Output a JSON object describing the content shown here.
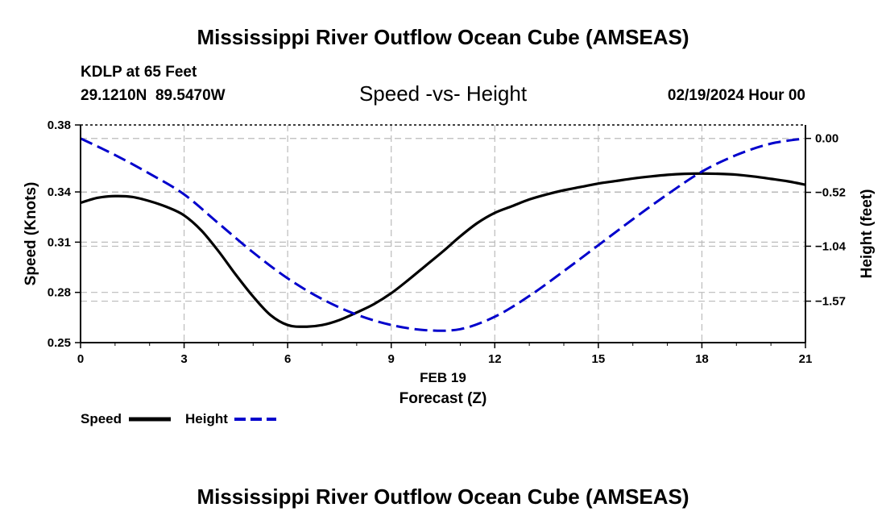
{
  "page": {
    "title": "Mississippi River Outflow Ocean Cube (AMSEAS)",
    "footer_title": "Mississippi River Outflow Ocean Cube (AMSEAS)"
  },
  "header": {
    "station": "KDLP at 65 Feet",
    "coords": "29.1210N  89.5470W",
    "date": "02/19/2024 Hour 00"
  },
  "chart_data": {
    "type": "line",
    "title": "Speed -vs- Height",
    "xlabel": "Forecast (Z)",
    "date_label": "FEB 19",
    "ylabel": "Speed (Knots)",
    "y2label": "Height (feet)",
    "xlim": [
      0,
      21
    ],
    "ylim": [
      0.25,
      0.38
    ],
    "y2lim": [
      -1.97,
      0.13
    ],
    "x_ticks": [
      0,
      3,
      6,
      9,
      12,
      15,
      18,
      21
    ],
    "x_tick_labels": [
      "0",
      "3",
      "6",
      "9",
      "12",
      "15",
      "18",
      "21"
    ],
    "y_ticks": [
      0.25,
      0.28,
      0.31,
      0.34,
      0.38
    ],
    "y_tick_labels": [
      "0.25",
      "0.28",
      "0.31",
      "0.34",
      "0.38"
    ],
    "y2_ticks": [
      0.0,
      -0.52,
      -1.04,
      -1.57
    ],
    "y2_tick_labels": [
      "0.00",
      "−0.52",
      "−1.04",
      "−1.57"
    ],
    "grid": true,
    "legend": [
      {
        "name": "Speed",
        "color": "#000000",
        "dash": "solid"
      },
      {
        "name": "Height",
        "color": "#0000cc",
        "dash": "dashed"
      }
    ],
    "series": [
      {
        "name": "Speed",
        "axis": "left",
        "color": "#000000",
        "x": [
          0,
          0.5,
          1,
          1.5,
          2,
          2.5,
          3,
          3.5,
          4,
          4.5,
          5,
          5.5,
          6,
          6.5,
          7,
          7.5,
          8,
          8.5,
          9,
          9.5,
          10,
          10.5,
          11,
          11.5,
          12,
          12.5,
          13,
          13.5,
          14,
          14.5,
          15,
          15.5,
          16,
          16.5,
          17,
          17.5,
          18,
          18.5,
          19,
          19.5,
          20,
          20.5,
          21
        ],
        "values": [
          0.3335,
          0.3365,
          0.3375,
          0.337,
          0.3345,
          0.331,
          0.326,
          0.317,
          0.3045,
          0.2905,
          0.2775,
          0.2665,
          0.2605,
          0.2595,
          0.2605,
          0.2635,
          0.268,
          0.273,
          0.2795,
          0.2875,
          0.296,
          0.3045,
          0.3135,
          0.3215,
          0.3275,
          0.3315,
          0.3355,
          0.3385,
          0.341,
          0.343,
          0.345,
          0.3465,
          0.348,
          0.3492,
          0.3502,
          0.3508,
          0.351,
          0.3508,
          0.3503,
          0.3492,
          0.3478,
          0.3463,
          0.3443
        ]
      },
      {
        "name": "Height",
        "axis": "right",
        "color": "#0000cc",
        "x": [
          0,
          1,
          2,
          3,
          4,
          5,
          6,
          7,
          8,
          9,
          10,
          11,
          12,
          13,
          14,
          15,
          16,
          17,
          18,
          19,
          20,
          21
        ],
        "values": [
          0.0,
          -0.16,
          -0.34,
          -0.54,
          -0.82,
          -1.1,
          -1.35,
          -1.55,
          -1.7,
          -1.8,
          -1.85,
          -1.84,
          -1.72,
          -1.52,
          -1.28,
          -1.03,
          -0.78,
          -0.54,
          -0.32,
          -0.16,
          -0.05,
          0.0
        ]
      }
    ]
  }
}
